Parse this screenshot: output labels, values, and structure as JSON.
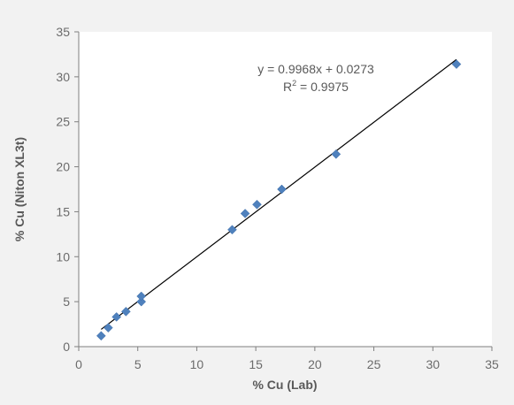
{
  "chart_data": {
    "type": "scatter",
    "title": "",
    "xlabel": "% Cu (Lab)",
    "ylabel": "% Cu (Niton XL3t)",
    "xlim": [
      0,
      35
    ],
    "ylim": [
      0,
      35
    ],
    "xticks": [
      0,
      5,
      10,
      15,
      20,
      25,
      30,
      35
    ],
    "yticks": [
      0,
      5,
      10,
      15,
      20,
      25,
      30,
      35
    ],
    "grid": false,
    "legend": "none",
    "series": [
      {
        "marker": "diamond",
        "color": "#4f81bd",
        "points": [
          {
            "x": 1.9,
            "y": 1.2
          },
          {
            "x": 2.5,
            "y": 2.1
          },
          {
            "x": 3.2,
            "y": 3.3
          },
          {
            "x": 4.0,
            "y": 3.9
          },
          {
            "x": 5.3,
            "y": 5.0
          },
          {
            "x": 5.3,
            "y": 5.6
          },
          {
            "x": 13.0,
            "y": 13.0
          },
          {
            "x": 14.1,
            "y": 14.8
          },
          {
            "x": 15.1,
            "y": 15.8
          },
          {
            "x": 17.2,
            "y": 17.5
          },
          {
            "x": 21.8,
            "y": 21.4
          },
          {
            "x": 32.0,
            "y": 31.4
          }
        ]
      }
    ],
    "trendline": {
      "slope": 0.9968,
      "intercept": 0.0273,
      "x_from": 1.9,
      "x_to": 32.0,
      "color": "#000000"
    },
    "annotations": {
      "equation": "y = 0.9968x + 0.0273",
      "r_squared_prefix": "R",
      "r_squared_sup": "2",
      "r_squared_suffix": " = 0.9975"
    }
  }
}
